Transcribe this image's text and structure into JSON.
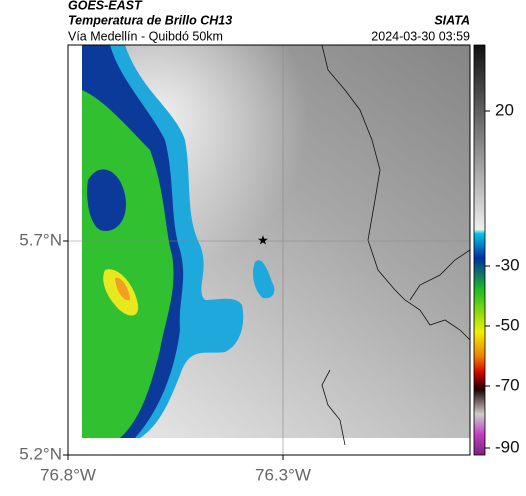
{
  "header": {
    "source": "GOES-EAST",
    "title": "Temperatura de Brillo CH13",
    "subtitle": "Vía Medellín - Quibdó 50km",
    "org": "SIATA",
    "timestamp": "2024-03-30 03:59"
  },
  "axes": {
    "lat_labels": [
      "5.7°N",
      "5.2°N"
    ],
    "lon_labels": [
      "76.8°W",
      "76.3°W"
    ]
  },
  "colorbar": {
    "ticks": [
      20,
      -30,
      -50,
      -70,
      -90
    ]
  }
}
